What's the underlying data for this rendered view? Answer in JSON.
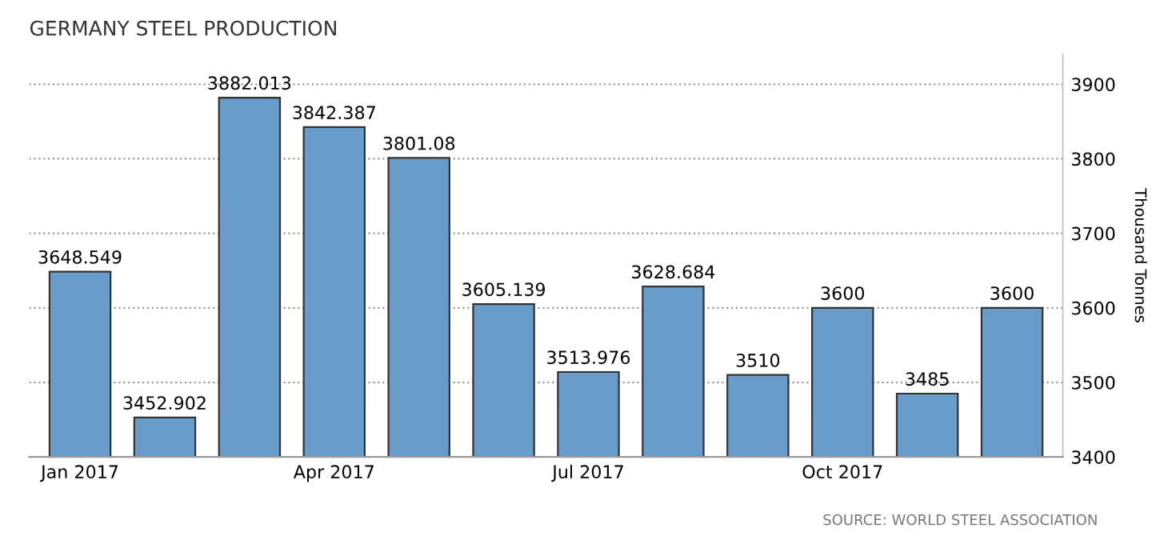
{
  "chart_data": {
    "type": "bar",
    "title": "GERMANY STEEL PRODUCTION",
    "ylabel": "Thousand Tonnes",
    "categories": [
      "Jan 2017",
      null,
      null,
      "Apr 2017",
      null,
      null,
      "Jul 2017",
      null,
      null,
      "Oct 2017",
      null,
      null
    ],
    "values": [
      3648.549,
      3452.902,
      3882.013,
      3842.387,
      3801.08,
      3605.139,
      3513.976,
      3628.684,
      3510,
      3600,
      3485,
      3600
    ],
    "color": "#6a9cc9",
    "ylim": [
      3400,
      3940
    ],
    "yticks": [
      3400,
      3500,
      3600,
      3700,
      3800,
      3900
    ],
    "grid": "y",
    "data_labels": true,
    "annotations": [
      "SOURCE: WORLD STEEL ASSOCIATION"
    ]
  }
}
